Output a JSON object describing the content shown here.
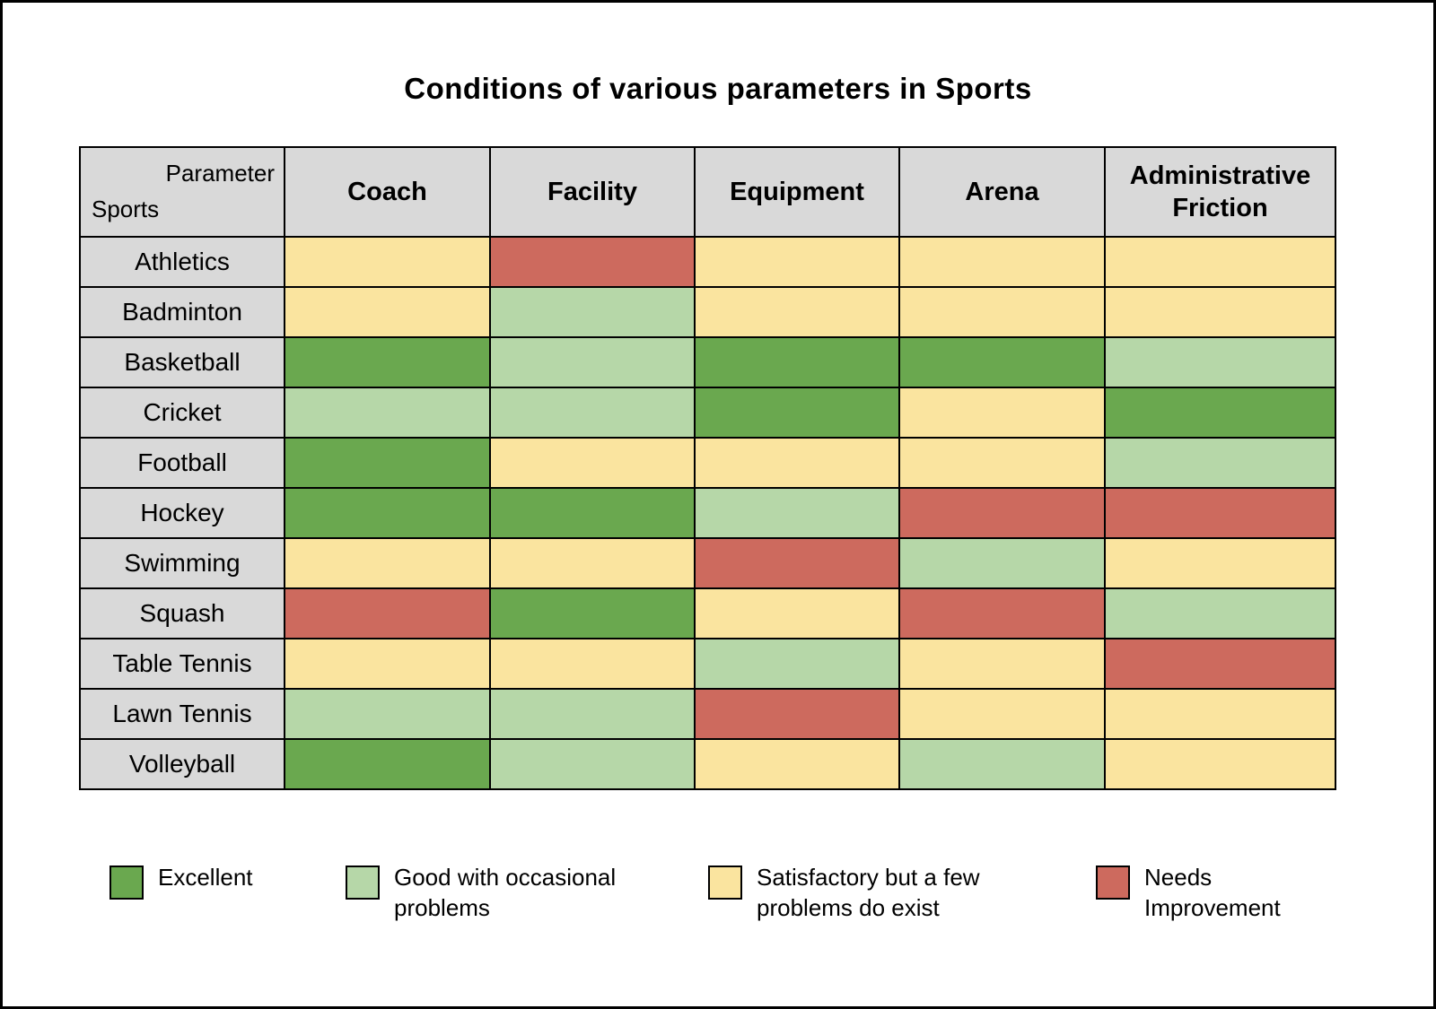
{
  "title": "Conditions of various parameters in Sports",
  "corner": {
    "top": "Parameter",
    "bottom": "Sports"
  },
  "chart_data": {
    "type": "heatmap",
    "title": "Conditions of various parameters in Sports",
    "x_categories": [
      "Coach",
      "Facility",
      "Equipment",
      "Arena",
      "Administrative Friction"
    ],
    "y_categories": [
      "Athletics",
      "Badminton",
      "Basketball",
      "Cricket",
      "Football",
      "Hockey",
      "Swimming",
      "Squash",
      "Table Tennis",
      "Lawn Tennis",
      "Volleyball"
    ],
    "values": [
      [
        "S",
        "N",
        "S",
        "S",
        "S"
      ],
      [
        "S",
        "G",
        "S",
        "S",
        "S"
      ],
      [
        "E",
        "G",
        "E",
        "E",
        "G"
      ],
      [
        "G",
        "G",
        "E",
        "S",
        "E"
      ],
      [
        "E",
        "S",
        "S",
        "S",
        "G"
      ],
      [
        "E",
        "E",
        "G",
        "N",
        "N"
      ],
      [
        "S",
        "S",
        "N",
        "G",
        "S"
      ],
      [
        "N",
        "E",
        "S",
        "N",
        "G"
      ],
      [
        "S",
        "S",
        "G",
        "S",
        "N"
      ],
      [
        "G",
        "G",
        "N",
        "S",
        "S"
      ],
      [
        "E",
        "G",
        "S",
        "G",
        "S"
      ]
    ],
    "legend": [
      {
        "key": "E",
        "label": "Excellent",
        "color": "#6AA84F"
      },
      {
        "key": "G",
        "label": "Good with occasional problems",
        "color": "#B6D7A8"
      },
      {
        "key": "S",
        "label": "Satisfactory but a few problems do exist",
        "color": "#FAE49F"
      },
      {
        "key": "N",
        "label": "Needs Improvement",
        "color": "#CD6A5E"
      }
    ],
    "legend_position": "bottom",
    "grid": true
  }
}
